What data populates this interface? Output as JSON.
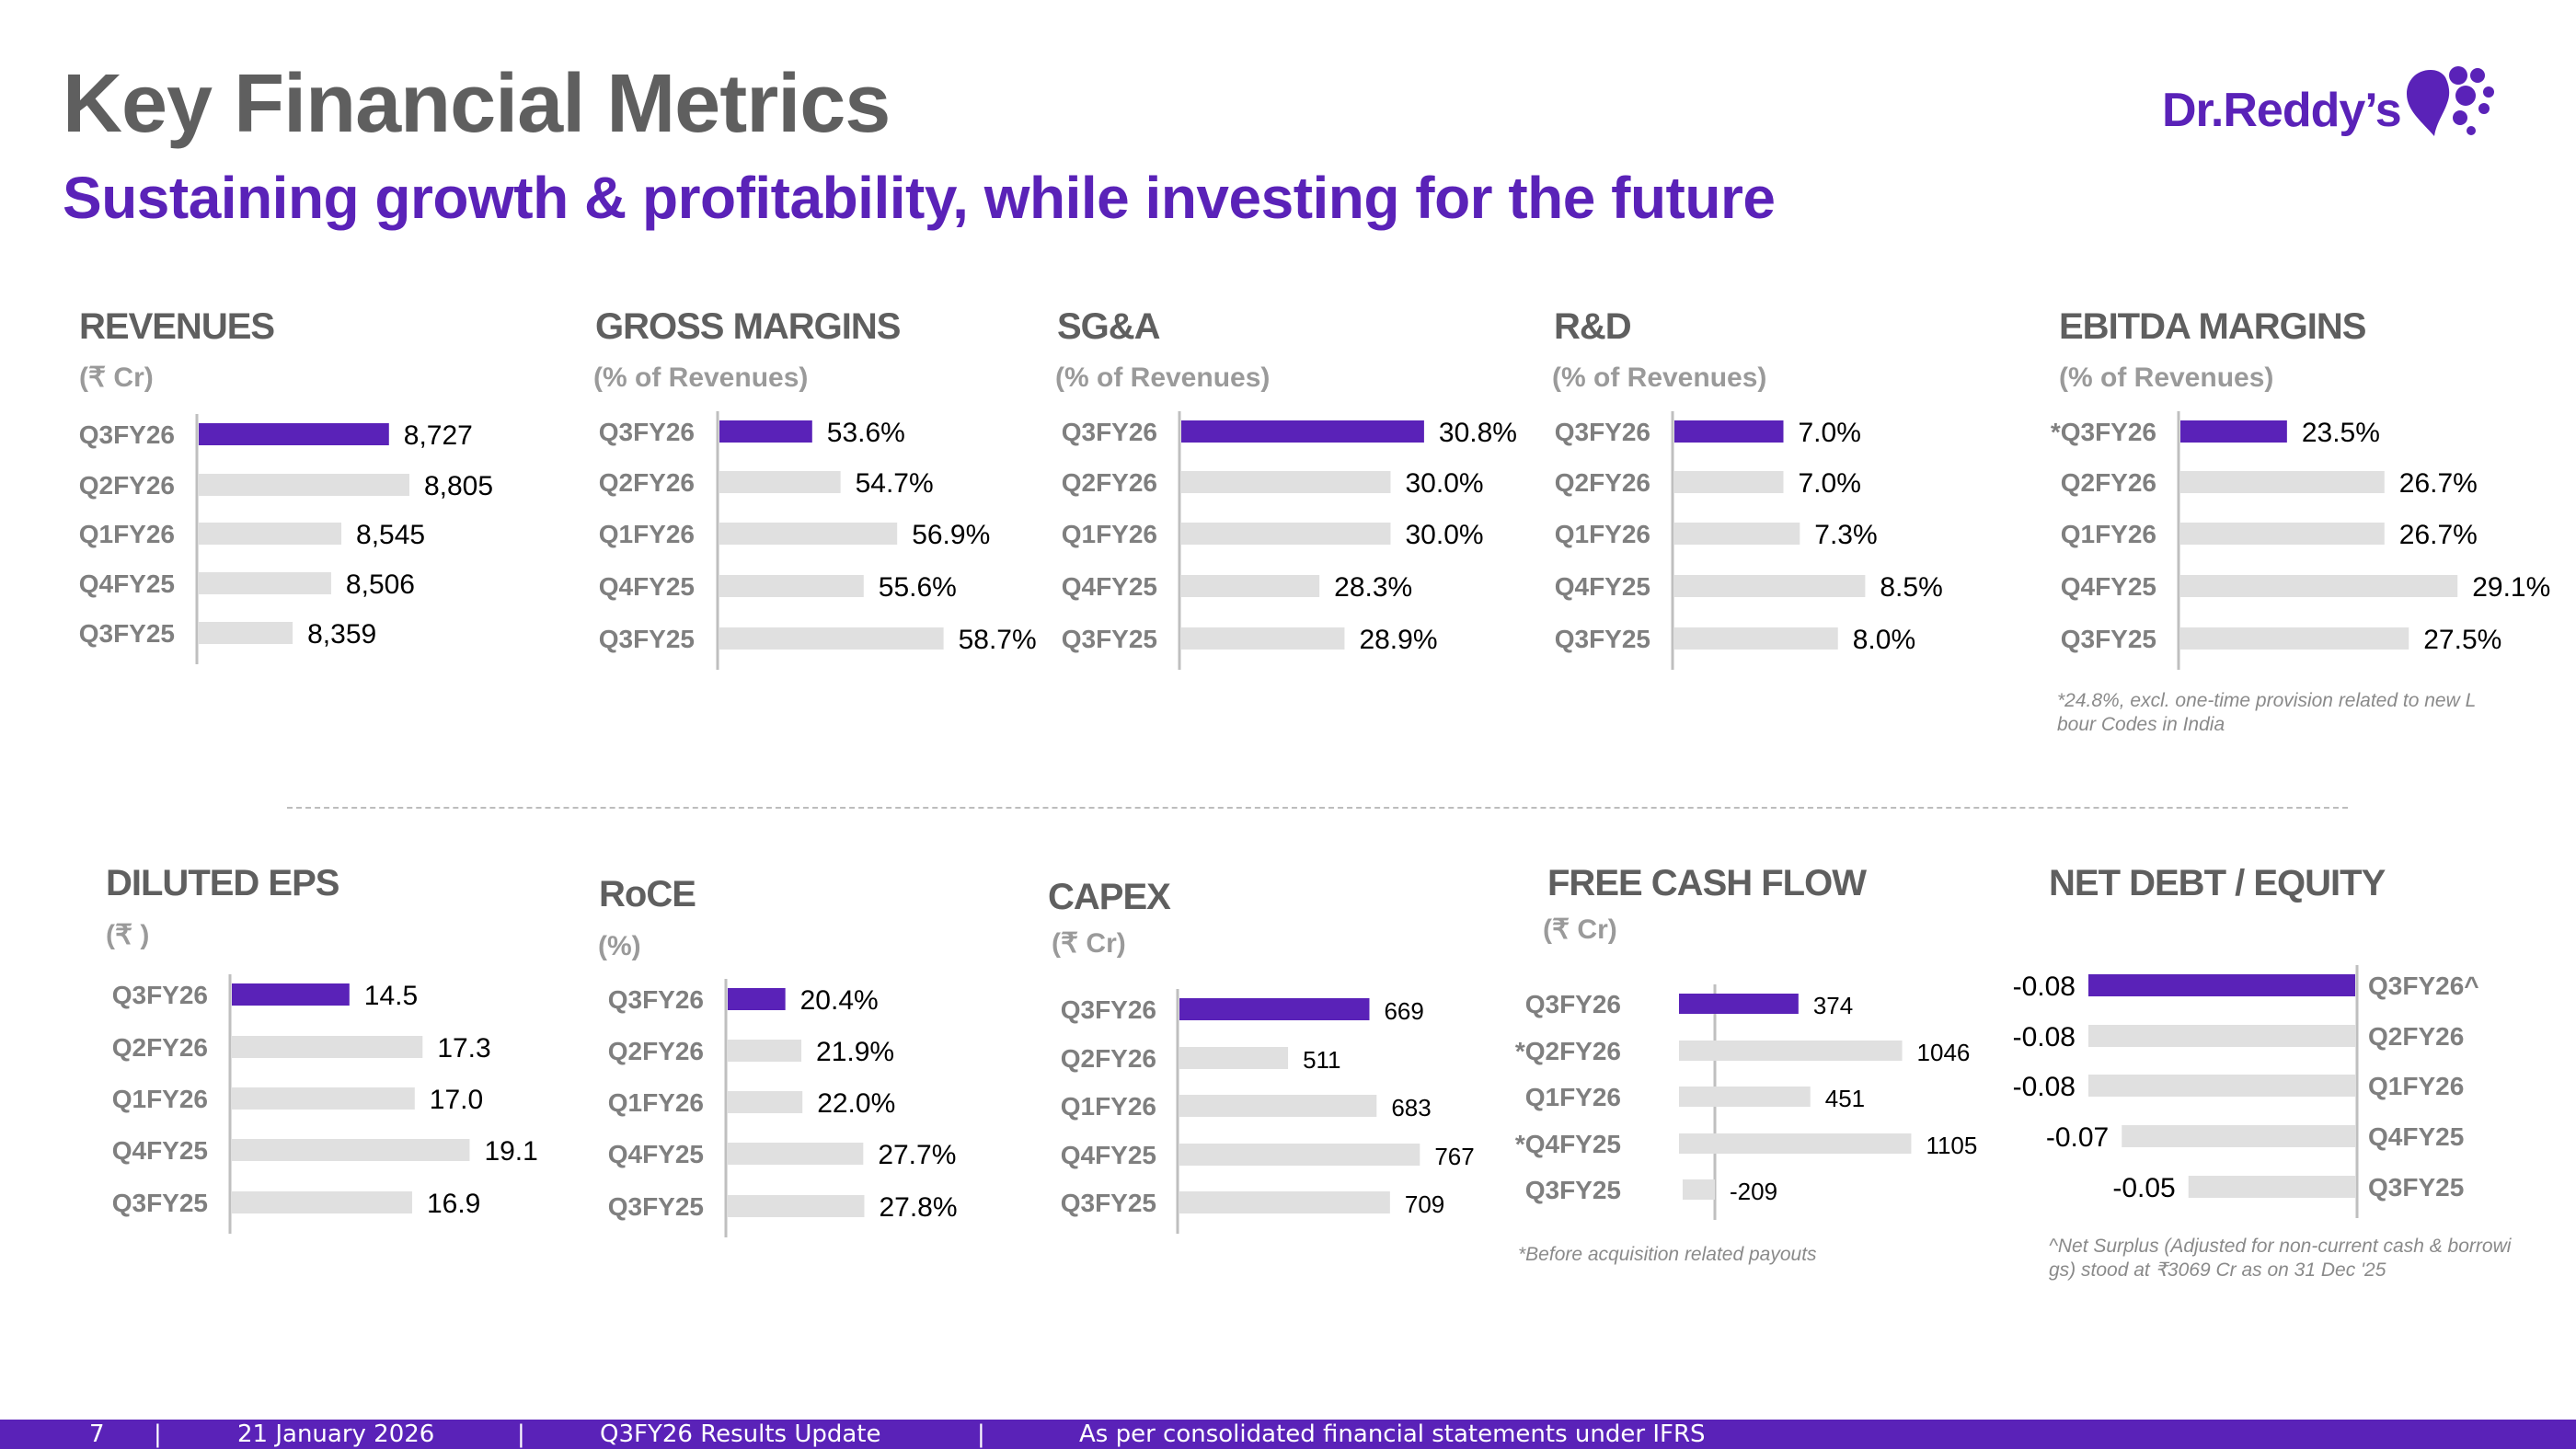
{
  "header": {
    "title": "Key Financial Metrics",
    "subtitle": "Sustaining growth & profitability, while investing for the future"
  },
  "logo": {
    "text": "Dr.Reddy’s"
  },
  "colors": {
    "accent": "#5a22b8",
    "bar_grey": "#e0e0e0",
    "label_grey": "#7f7f7f",
    "title_grey": "#5f5f5f",
    "axis_grey": "#bfbfbf"
  },
  "footer": {
    "page": "7",
    "date": "21 January 2026",
    "doc": "Q3FY26 Results Update",
    "note": "As per consolidated financial statements under IFRS",
    "separator": "|"
  },
  "chart_data": [
    {
      "type": "bar",
      "orientation": "horizontal",
      "title": "REVENUES",
      "unit": "(₹ Cr)",
      "categories": [
        "Q3FY26",
        "Q2FY26",
        "Q1FY26",
        "Q4FY25",
        "Q3FY25"
      ],
      "values": [
        8727,
        8805,
        8545,
        8506,
        8359
      ],
      "labels": [
        "8,727",
        "8,805",
        "8,545",
        "8,506",
        "8,359"
      ],
      "xlim": [
        8000,
        8900
      ],
      "highlight_index": 0
    },
    {
      "type": "bar",
      "orientation": "horizontal",
      "title": "GROSS MARGINS",
      "unit": "(% of Revenues)",
      "categories": [
        "Q3FY26",
        "Q2FY26",
        "Q1FY26",
        "Q4FY25",
        "Q3FY25"
      ],
      "values": [
        53.6,
        54.7,
        56.9,
        55.6,
        58.7
      ],
      "labels": [
        "53.6%",
        "54.7%",
        "56.9%",
        "55.6%",
        "58.7%"
      ],
      "xlim": [
        50,
        60
      ],
      "highlight_index": 0
    },
    {
      "type": "bar",
      "orientation": "horizontal",
      "title": "SG&A",
      "unit": "(% of Revenues)",
      "categories": [
        "Q3FY26",
        "Q2FY26",
        "Q1FY26",
        "Q4FY25",
        "Q3FY25"
      ],
      "values": [
        30.8,
        30.0,
        30.0,
        28.3,
        28.9
      ],
      "labels": [
        "30.8%",
        "30.0%",
        "30.0%",
        "28.3%",
        "28.9%"
      ],
      "xlim": [
        25,
        31
      ],
      "highlight_index": 0
    },
    {
      "type": "bar",
      "orientation": "horizontal",
      "title": "R&D",
      "unit": "(% of Revenues)",
      "categories": [
        "Q3FY26",
        "Q2FY26",
        "Q1FY26",
        "Q4FY25",
        "Q3FY25"
      ],
      "values": [
        7.0,
        7.0,
        7.3,
        8.5,
        8.0
      ],
      "labels": [
        "7.0%",
        "7.0%",
        "7.3%",
        "8.5%",
        "8.0%"
      ],
      "xlim": [
        5,
        9
      ],
      "highlight_index": 0
    },
    {
      "type": "bar",
      "orientation": "horizontal",
      "title": "EBITDA MARGINS",
      "unit": "(% of Revenues)",
      "categories": [
        "*Q3FY26",
        "Q2FY26",
        "Q1FY26",
        "Q4FY25",
        "Q3FY25"
      ],
      "values": [
        23.5,
        26.7,
        26.7,
        29.1,
        27.5
      ],
      "labels": [
        "23.5%",
        "26.7%",
        "26.7%",
        "29.1%",
        "27.5%"
      ],
      "xlim": [
        20,
        30
      ],
      "highlight_index": 0,
      "footnote": "*24.8%, excl. one-time provision related to new Labour Codes in India"
    },
    {
      "type": "bar",
      "orientation": "horizontal",
      "title": "DILUTED EPS",
      "unit": "(₹ )",
      "categories": [
        "Q3FY26",
        "Q2FY26",
        "Q1FY26",
        "Q4FY25",
        "Q3FY25"
      ],
      "values": [
        14.5,
        17.3,
        17.0,
        19.1,
        16.9
      ],
      "labels": [
        "14.5",
        "17.3",
        "17.0",
        "19.1",
        "16.9"
      ],
      "xlim": [
        10,
        20
      ],
      "highlight_index": 0
    },
    {
      "type": "bar",
      "orientation": "horizontal",
      "title": "RoCE",
      "unit": "(%)",
      "categories": [
        "Q3FY26",
        "Q2FY26",
        "Q1FY26",
        "Q4FY25",
        "Q3FY25"
      ],
      "values": [
        20.4,
        21.9,
        22.0,
        27.7,
        27.8
      ],
      "labels": [
        "20.4%",
        "21.9%",
        "22.0%",
        "27.7%",
        "27.8%"
      ],
      "xlim": [
        15,
        30
      ],
      "highlight_index": 0
    },
    {
      "type": "bar",
      "orientation": "horizontal",
      "title": "CAPEX",
      "unit": "(₹ Cr)",
      "categories": [
        "Q3FY26",
        "Q2FY26",
        "Q1FY26",
        "Q4FY25",
        "Q3FY25"
      ],
      "values": [
        669,
        511,
        683,
        767,
        709
      ],
      "labels": [
        "669",
        "511",
        "683",
        "767",
        "709"
      ],
      "xlim": [
        300,
        770
      ],
      "highlight_index": 0
    },
    {
      "type": "bar",
      "orientation": "horizontal",
      "title": "FREE CASH FLOW",
      "unit": "(₹ Cr)",
      "categories": [
        "Q3FY26",
        "*Q2FY26",
        "Q1FY26",
        "*Q4FY25",
        "Q3FY25"
      ],
      "values": [
        374,
        1046,
        451,
        1105,
        -209
      ],
      "labels": [
        "374",
        "1046",
        "451",
        "1105",
        "-209"
      ],
      "xlim": [
        -400,
        1150
      ],
      "highlight_index": 0,
      "footnote": "*Before acquisition related payouts"
    },
    {
      "type": "bar",
      "orientation": "horizontal",
      "axis_side": "right",
      "title": "NET DEBT / EQUITY",
      "unit": "",
      "categories": [
        "Q3FY26^",
        "Q2FY26",
        "Q1FY26",
        "Q4FY25",
        "Q3FY25"
      ],
      "values": [
        -0.08,
        -0.08,
        -0.08,
        -0.07,
        -0.05
      ],
      "labels": [
        "-0.08",
        "-0.08",
        "-0.08",
        "-0.07",
        "-0.05"
      ],
      "xlim": [
        -0.08,
        0
      ],
      "highlight_index": 0,
      "footnote": "^Net Surplus (Adjusted for non-current cash & borrowings) stood at ₹3069 Cr as on 31 Dec '25"
    }
  ]
}
